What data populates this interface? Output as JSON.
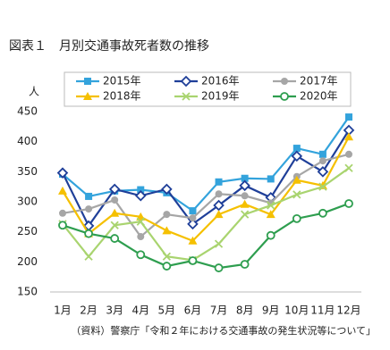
{
  "chart_data": {
    "type": "line",
    "title": "図表１　月別交通事故死者数の推移",
    "y_unit": "人",
    "source": "（資料）警察庁「令和２年における交通事故の発生状況等について」",
    "categories": [
      "1月",
      "2月",
      "3月",
      "4月",
      "5月",
      "6月",
      "7月",
      "8月",
      "9月",
      "10月",
      "11月",
      "12月"
    ],
    "ylim": [
      150,
      450
    ],
    "yticks": [
      150,
      200,
      250,
      300,
      350,
      400,
      450
    ],
    "grid": false,
    "series": [
      {
        "name": "2015年",
        "color": "#33a3dc",
        "marker": "square",
        "values": [
          346,
          309,
          318,
          320,
          315,
          285,
          333,
          339,
          338,
          389,
          379,
          441
        ]
      },
      {
        "name": "2016年",
        "color": "#1f3f99",
        "marker": "diamond",
        "values": [
          348,
          260,
          321,
          310,
          321,
          263,
          294,
          327,
          307,
          376,
          350,
          419
        ]
      },
      {
        "name": "2017年",
        "color": "#a6a6a6",
        "marker": "circle",
        "values": [
          281,
          288,
          303,
          242,
          279,
          273,
          313,
          310,
          298,
          342,
          368,
          379
        ]
      },
      {
        "name": "2018年",
        "color": "#f5c000",
        "marker": "triangle",
        "values": [
          318,
          247,
          281,
          275,
          252,
          235,
          279,
          296,
          279,
          336,
          327,
          408
        ]
      },
      {
        "name": "2019年",
        "color": "#a9d46f",
        "marker": "x",
        "values": [
          263,
          209,
          261,
          267,
          209,
          203,
          230,
          279,
          294,
          312,
          325,
          356
        ]
      },
      {
        "name": "2020年",
        "color": "#2e9e4f",
        "marker": "hollow-circle",
        "values": [
          261,
          247,
          239,
          212,
          193,
          202,
          190,
          196,
          244,
          272,
          281,
          297
        ]
      }
    ]
  }
}
